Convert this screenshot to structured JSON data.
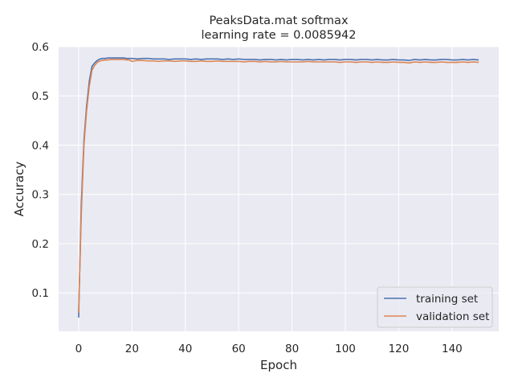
{
  "chart_data": {
    "type": "line",
    "title_line1": "PeaksData.mat softmax",
    "title_line2": "learning rate =    0.0085942",
    "xlabel": "Epoch",
    "ylabel": "Accuracy",
    "xlim": [
      -7.5,
      157.5
    ],
    "ylim": [
      0.022,
      0.6
    ],
    "xticks": [
      0,
      20,
      40,
      60,
      80,
      100,
      120,
      140
    ],
    "xtick_labels": [
      "0",
      "20",
      "40",
      "60",
      "80",
      "100",
      "120",
      "140"
    ],
    "yticks": [
      0.1,
      0.2,
      0.3,
      0.4,
      0.5,
      0.6
    ],
    "ytick_labels": [
      "0.1",
      "0.2",
      "0.3",
      "0.4",
      "0.5",
      "0.6"
    ],
    "grid": true,
    "legend_position": "lower-right",
    "series": [
      {
        "name": "training set",
        "color": "#4c72b0",
        "x": [
          0,
          1,
          2,
          3,
          4,
          5,
          6,
          7,
          8,
          9,
          10,
          11,
          12,
          13,
          14,
          15,
          16,
          17,
          18,
          19,
          20,
          22,
          24,
          26,
          28,
          30,
          32,
          34,
          36,
          38,
          40,
          42,
          44,
          46,
          48,
          50,
          52,
          54,
          56,
          58,
          60,
          62,
          64,
          66,
          68,
          70,
          72,
          74,
          76,
          78,
          80,
          82,
          84,
          86,
          88,
          90,
          92,
          94,
          96,
          98,
          100,
          102,
          104,
          106,
          108,
          110,
          112,
          114,
          116,
          118,
          120,
          122,
          124,
          126,
          128,
          130,
          132,
          134,
          136,
          138,
          140,
          142,
          144,
          146,
          148,
          150
        ],
        "y": [
          0.05,
          0.28,
          0.41,
          0.48,
          0.53,
          0.56,
          0.567,
          0.572,
          0.575,
          0.576,
          0.576,
          0.577,
          0.577,
          0.577,
          0.577,
          0.577,
          0.577,
          0.577,
          0.576,
          0.576,
          0.576,
          0.575,
          0.576,
          0.576,
          0.575,
          0.575,
          0.575,
          0.574,
          0.575,
          0.575,
          0.575,
          0.574,
          0.575,
          0.574,
          0.575,
          0.575,
          0.575,
          0.574,
          0.575,
          0.574,
          0.575,
          0.574,
          0.574,
          0.574,
          0.573,
          0.574,
          0.574,
          0.573,
          0.574,
          0.573,
          0.574,
          0.574,
          0.573,
          0.574,
          0.573,
          0.574,
          0.573,
          0.574,
          0.574,
          0.573,
          0.574,
          0.574,
          0.573,
          0.574,
          0.574,
          0.573,
          0.574,
          0.573,
          0.573,
          0.574,
          0.573,
          0.573,
          0.572,
          0.574,
          0.573,
          0.574,
          0.573,
          0.573,
          0.574,
          0.574,
          0.573,
          0.573,
          0.574,
          0.573,
          0.574,
          0.573
        ]
      },
      {
        "name": "validation set",
        "color": "#dd8452",
        "x": [
          0,
          1,
          2,
          3,
          4,
          5,
          6,
          7,
          8,
          9,
          10,
          11,
          12,
          13,
          14,
          15,
          16,
          17,
          18,
          19,
          20,
          22,
          24,
          26,
          28,
          30,
          32,
          34,
          36,
          38,
          40,
          42,
          44,
          46,
          48,
          50,
          52,
          54,
          56,
          58,
          60,
          62,
          64,
          66,
          68,
          70,
          72,
          74,
          76,
          78,
          80,
          82,
          84,
          86,
          88,
          90,
          92,
          94,
          96,
          98,
          100,
          102,
          104,
          106,
          108,
          110,
          112,
          114,
          116,
          118,
          120,
          122,
          124,
          126,
          128,
          130,
          132,
          134,
          136,
          138,
          140,
          142,
          144,
          146,
          148,
          150
        ],
        "y": [
          0.06,
          0.26,
          0.4,
          0.47,
          0.52,
          0.552,
          0.562,
          0.568,
          0.571,
          0.572,
          0.573,
          0.573,
          0.574,
          0.574,
          0.574,
          0.574,
          0.574,
          0.574,
          0.573,
          0.573,
          0.57,
          0.572,
          0.572,
          0.571,
          0.571,
          0.57,
          0.571,
          0.571,
          0.57,
          0.571,
          0.571,
          0.57,
          0.57,
          0.571,
          0.57,
          0.57,
          0.571,
          0.57,
          0.57,
          0.57,
          0.57,
          0.569,
          0.57,
          0.57,
          0.569,
          0.57,
          0.569,
          0.569,
          0.57,
          0.569,
          0.569,
          0.569,
          0.569,
          0.57,
          0.569,
          0.569,
          0.569,
          0.569,
          0.569,
          0.568,
          0.569,
          0.569,
          0.568,
          0.569,
          0.569,
          0.568,
          0.569,
          0.568,
          0.568,
          0.569,
          0.568,
          0.568,
          0.567,
          0.569,
          0.568,
          0.569,
          0.568,
          0.568,
          0.569,
          0.568,
          0.568,
          0.568,
          0.569,
          0.568,
          0.569,
          0.568
        ]
      }
    ]
  }
}
